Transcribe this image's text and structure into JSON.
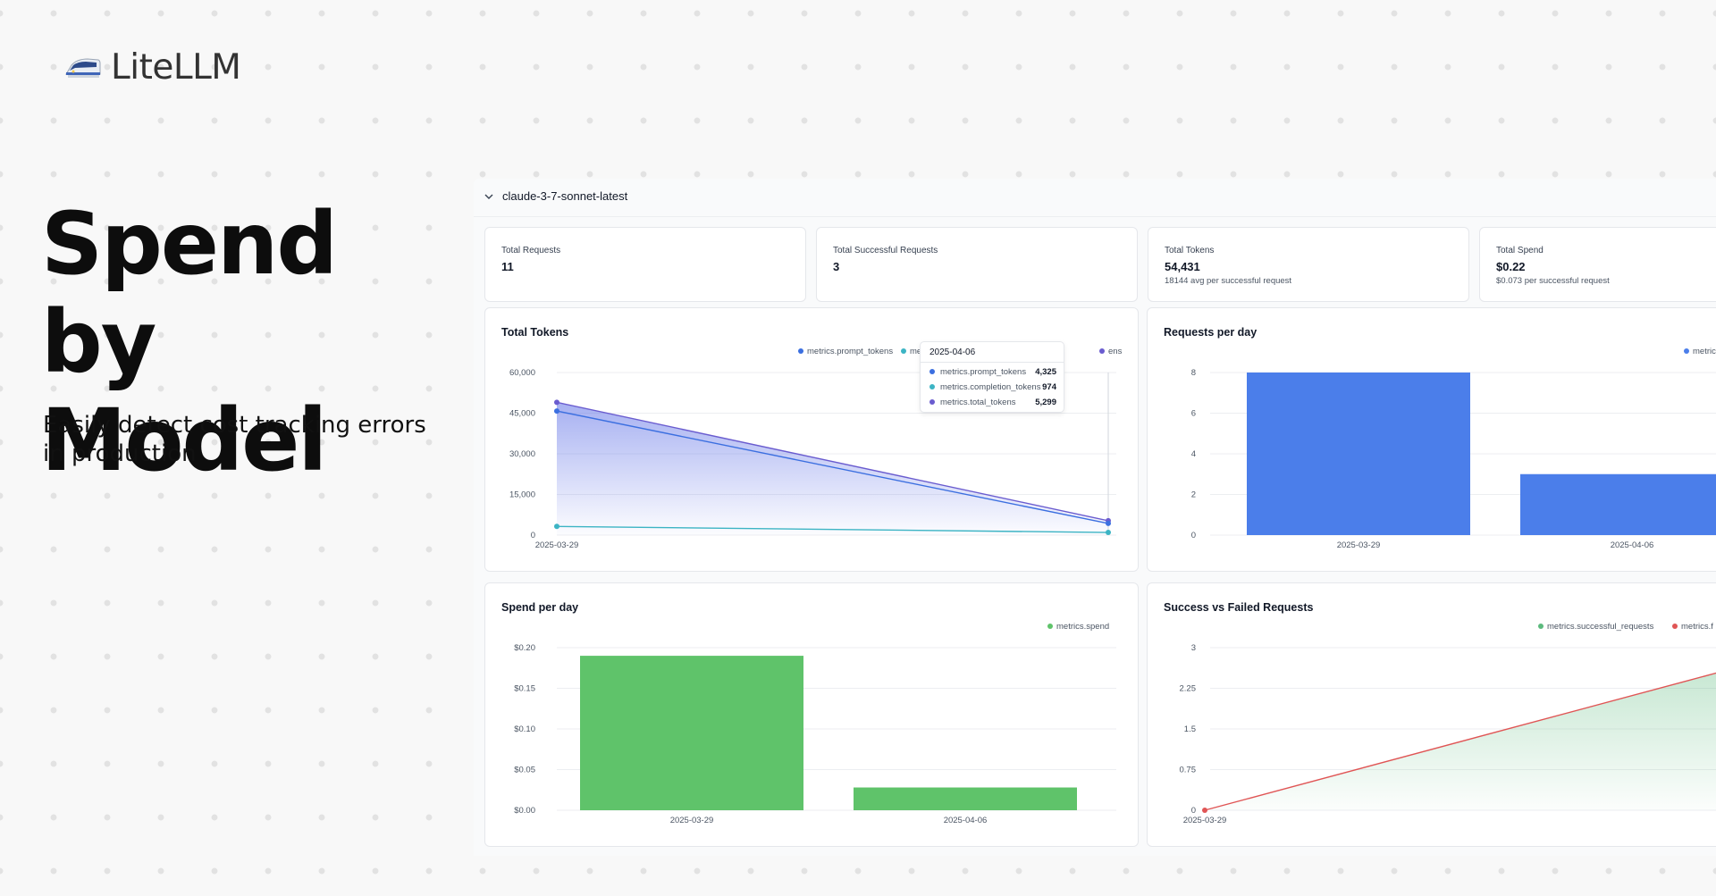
{
  "brand": {
    "name": "LiteLLM"
  },
  "hero": {
    "title_line1": "Spend by",
    "title_line2": "Model",
    "subtitle": "Easily detect cost tracking errors in production"
  },
  "model": {
    "name": "claude-3-7-sonnet-latest"
  },
  "stats": [
    {
      "label": "Total Requests",
      "value": "11",
      "sub": ""
    },
    {
      "label": "Total Successful Requests",
      "value": "3",
      "sub": ""
    },
    {
      "label": "Total Tokens",
      "value": "54,431",
      "sub": "18144 avg per successful request"
    },
    {
      "label": "Total Spend",
      "value": "$0.22",
      "sub": "$0.073 per successful request"
    }
  ],
  "colors": {
    "prompt": "#3b6fe0",
    "completion": "#3cb4c4",
    "total": "#6a5ccf",
    "requests": "#4b7eea",
    "spend": "#5fc36a",
    "success": "#5cba7d",
    "failed": "#e05555"
  },
  "chart_data": [
    {
      "type": "line",
      "title": "Total Tokens",
      "x": [
        "2025-03-29",
        "2025-04-06"
      ],
      "x_tick_labels": [
        "2025-03-29"
      ],
      "ylim": [
        0,
        60000
      ],
      "yticks": [
        "60,000",
        "45,000",
        "30,000",
        "15,000",
        "0"
      ],
      "series": [
        {
          "name": "metrics.prompt_tokens",
          "values": [
            45800,
            4325
          ]
        },
        {
          "name": "metrics.completion_tokens",
          "values": [
            3200,
            974
          ]
        },
        {
          "name": "metrics.total_tokens",
          "values": [
            49000,
            5299
          ]
        }
      ],
      "legend_visible": [
        "metrics.prompt_tokens",
        "me",
        "ens"
      ],
      "tooltip": {
        "date": "2025-04-06",
        "rows": [
          {
            "label": "metrics.prompt_tokens",
            "value": "4,325"
          },
          {
            "label": "metrics.completion_tokens",
            "value": "974"
          },
          {
            "label": "metrics.total_tokens",
            "value": "5,299"
          }
        ]
      }
    },
    {
      "type": "bar",
      "title": "Requests per day",
      "categories": [
        "2025-03-29",
        "2025-04-06"
      ],
      "values": [
        8,
        3
      ],
      "ylim": [
        0,
        8
      ],
      "yticks": [
        "8",
        "6",
        "4",
        "2",
        "0"
      ],
      "legend_visible": [
        "metric"
      ]
    },
    {
      "type": "bar",
      "title": "Spend per day",
      "categories": [
        "2025-03-29",
        "2025-04-06"
      ],
      "values": [
        0.19,
        0.028
      ],
      "ylim": [
        0,
        0.2
      ],
      "yticks": [
        "$0.20",
        "$0.15",
        "$0.10",
        "$0.05",
        "$0.00"
      ],
      "series": [
        {
          "name": "metrics.spend",
          "values": [
            0.19,
            0.028
          ]
        }
      ]
    },
    {
      "type": "area",
      "title": "Success vs Failed Requests",
      "x": [
        "2025-03-29"
      ],
      "x_tick_labels": [
        "2025-03-29"
      ],
      "ylim": [
        0,
        3
      ],
      "yticks": [
        "3",
        "2.25",
        "1.5",
        "0.75",
        "0"
      ],
      "series": [
        {
          "name": "metrics.successful_requests",
          "values": [
            0
          ]
        },
        {
          "name": "metrics.failed_requests",
          "values": [
            0
          ]
        }
      ],
      "legend_visible": [
        "metrics.successful_requests",
        "metrics.f"
      ]
    }
  ]
}
